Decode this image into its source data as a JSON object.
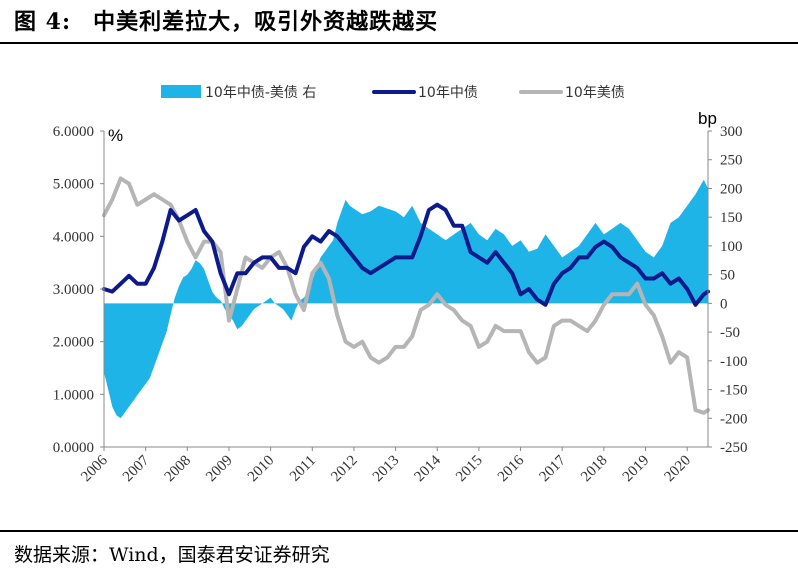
{
  "header": {
    "figure_number": "图 4:",
    "title": "中美利差拉大，吸引外资越跌越买"
  },
  "footer": {
    "source": "数据来源：Wind，国泰君安证券研究"
  },
  "chart_data": {
    "type": "line",
    "left_unit": "%",
    "right_unit": "bp",
    "legend_position": "top-center",
    "grid": false,
    "left_axis": {
      "ylim": [
        0,
        6
      ],
      "ticks": [
        "0.0000",
        "1.0000",
        "2.0000",
        "3.0000",
        "4.0000",
        "5.0000",
        "6.0000"
      ]
    },
    "right_axis": {
      "ylim": [
        -250,
        300
      ],
      "ticks": [
        "-250",
        "-200",
        "-150",
        "-100",
        "-50",
        "0",
        "50",
        "100",
        "150",
        "200",
        "250",
        "300"
      ]
    },
    "x_ticks": [
      "2006",
      "2007",
      "2008",
      "2009",
      "2010",
      "2011",
      "2012",
      "2013",
      "2014",
      "2015",
      "2016",
      "2017",
      "2018",
      "2019",
      "2020"
    ],
    "x_range": [
      2006.0,
      2020.5
    ],
    "series": [
      {
        "name": "10年中债-美债 右",
        "kind": "area",
        "axis": "right",
        "color": "#1EB4E8",
        "x": [
          2006.0,
          2006.1,
          2006.2,
          2006.3,
          2006.4,
          2006.5,
          2006.6,
          2006.7,
          2006.8,
          2006.9,
          2007.0,
          2007.1,
          2007.2,
          2007.3,
          2007.4,
          2007.5,
          2007.6,
          2007.7,
          2007.8,
          2007.9,
          2008.0,
          2008.1,
          2008.2,
          2008.3,
          2008.4,
          2008.5,
          2008.6,
          2008.7,
          2008.8,
          2008.9,
          2009.0,
          2009.1,
          2009.2,
          2009.3,
          2009.4,
          2009.5,
          2009.6,
          2009.7,
          2009.8,
          2009.9,
          2010.0,
          2010.1,
          2010.2,
          2010.3,
          2010.4,
          2010.5,
          2010.6,
          2010.7,
          2010.8,
          2010.9,
          2011.0,
          2011.1,
          2011.2,
          2011.3,
          2011.4,
          2011.5,
          2011.6,
          2011.7,
          2011.8,
          2011.9,
          2012.0,
          2012.2,
          2012.4,
          2012.6,
          2012.8,
          2013.0,
          2013.2,
          2013.4,
          2013.6,
          2013.8,
          2014.0,
          2014.2,
          2014.4,
          2014.6,
          2014.8,
          2015.0,
          2015.2,
          2015.4,
          2015.6,
          2015.8,
          2016.0,
          2016.2,
          2016.4,
          2016.6,
          2016.8,
          2017.0,
          2017.2,
          2017.4,
          2017.6,
          2017.8,
          2018.0,
          2018.2,
          2018.4,
          2018.6,
          2018.8,
          2019.0,
          2019.2,
          2019.4,
          2019.6,
          2019.8,
          2020.0,
          2020.2,
          2020.4,
          2020.5
        ],
        "values": [
          -120,
          -150,
          -180,
          -195,
          -200,
          -190,
          -180,
          -170,
          -160,
          -150,
          -140,
          -130,
          -110,
          -90,
          -70,
          -50,
          -20,
          10,
          30,
          45,
          50,
          60,
          75,
          70,
          60,
          40,
          20,
          10,
          5,
          -10,
          -20,
          -30,
          -45,
          -40,
          -30,
          -20,
          -10,
          -5,
          0,
          5,
          10,
          0,
          -5,
          -10,
          -20,
          -30,
          -10,
          5,
          10,
          20,
          40,
          60,
          80,
          90,
          100,
          110,
          140,
          160,
          180,
          170,
          165,
          155,
          160,
          170,
          165,
          160,
          150,
          170,
          140,
          130,
          120,
          110,
          120,
          130,
          140,
          120,
          110,
          130,
          120,
          100,
          110,
          90,
          95,
          120,
          100,
          80,
          90,
          100,
          120,
          140,
          120,
          130,
          140,
          130,
          110,
          90,
          80,
          100,
          140,
          150,
          170,
          190,
          215,
          200
        ]
      },
      {
        "name": "10年中债",
        "kind": "line",
        "axis": "left",
        "color": "#0C1A8C",
        "x": [
          2006.0,
          2006.2,
          2006.4,
          2006.6,
          2006.8,
          2007.0,
          2007.2,
          2007.4,
          2007.6,
          2007.8,
          2008.0,
          2008.2,
          2008.4,
          2008.6,
          2008.8,
          2009.0,
          2009.2,
          2009.4,
          2009.6,
          2009.8,
          2010.0,
          2010.2,
          2010.4,
          2010.6,
          2010.8,
          2011.0,
          2011.2,
          2011.4,
          2011.6,
          2011.8,
          2012.0,
          2012.2,
          2012.4,
          2012.6,
          2012.8,
          2013.0,
          2013.2,
          2013.4,
          2013.6,
          2013.8,
          2014.0,
          2014.2,
          2014.4,
          2014.6,
          2014.8,
          2015.0,
          2015.2,
          2015.4,
          2015.6,
          2015.8,
          2016.0,
          2016.2,
          2016.4,
          2016.6,
          2016.8,
          2017.0,
          2017.2,
          2017.4,
          2017.6,
          2017.8,
          2018.0,
          2018.2,
          2018.4,
          2018.6,
          2018.8,
          2019.0,
          2019.2,
          2019.4,
          2019.6,
          2019.8,
          2020.0,
          2020.2,
          2020.4,
          2020.5
        ],
        "values": [
          3.0,
          2.95,
          3.1,
          3.25,
          3.1,
          3.1,
          3.4,
          3.9,
          4.5,
          4.3,
          4.4,
          4.5,
          4.1,
          3.9,
          3.3,
          2.9,
          3.3,
          3.3,
          3.5,
          3.6,
          3.6,
          3.4,
          3.4,
          3.3,
          3.8,
          4.0,
          3.9,
          4.1,
          4.0,
          3.8,
          3.6,
          3.4,
          3.3,
          3.4,
          3.5,
          3.6,
          3.6,
          3.6,
          4.0,
          4.5,
          4.6,
          4.5,
          4.2,
          4.2,
          3.7,
          3.6,
          3.5,
          3.7,
          3.5,
          3.3,
          2.9,
          3.0,
          2.8,
          2.7,
          3.1,
          3.3,
          3.4,
          3.6,
          3.6,
          3.8,
          3.9,
          3.8,
          3.6,
          3.5,
          3.4,
          3.2,
          3.2,
          3.3,
          3.1,
          3.2,
          3.0,
          2.7,
          2.9,
          2.95
        ]
      },
      {
        "name": "10年美债",
        "kind": "line",
        "axis": "left",
        "color": "#B5B5B5",
        "x": [
          2006.0,
          2006.2,
          2006.4,
          2006.6,
          2006.8,
          2007.0,
          2007.2,
          2007.4,
          2007.6,
          2007.8,
          2008.0,
          2008.2,
          2008.4,
          2008.6,
          2008.8,
          2009.0,
          2009.2,
          2009.4,
          2009.6,
          2009.8,
          2010.0,
          2010.2,
          2010.4,
          2010.6,
          2010.8,
          2011.0,
          2011.2,
          2011.4,
          2011.6,
          2011.8,
          2012.0,
          2012.2,
          2012.4,
          2012.6,
          2012.8,
          2013.0,
          2013.2,
          2013.4,
          2013.6,
          2013.8,
          2014.0,
          2014.2,
          2014.4,
          2014.6,
          2014.8,
          2015.0,
          2015.2,
          2015.4,
          2015.6,
          2015.8,
          2016.0,
          2016.2,
          2016.4,
          2016.6,
          2016.8,
          2017.0,
          2017.2,
          2017.4,
          2017.6,
          2017.8,
          2018.0,
          2018.2,
          2018.4,
          2018.6,
          2018.8,
          2019.0,
          2019.2,
          2019.4,
          2019.6,
          2019.8,
          2020.0,
          2020.2,
          2020.4,
          2020.5
        ],
        "values": [
          4.4,
          4.7,
          5.1,
          5.0,
          4.6,
          4.7,
          4.8,
          4.7,
          4.6,
          4.3,
          3.9,
          3.6,
          3.9,
          3.9,
          3.7,
          2.4,
          3.0,
          3.6,
          3.5,
          3.4,
          3.6,
          3.7,
          3.4,
          2.9,
          2.6,
          3.3,
          3.5,
          3.2,
          2.5,
          2.0,
          1.9,
          2.0,
          1.7,
          1.6,
          1.7,
          1.9,
          1.9,
          2.1,
          2.6,
          2.7,
          2.9,
          2.7,
          2.6,
          2.4,
          2.3,
          1.9,
          2.0,
          2.3,
          2.2,
          2.2,
          2.2,
          1.8,
          1.6,
          1.7,
          2.3,
          2.4,
          2.4,
          2.3,
          2.2,
          2.4,
          2.7,
          2.9,
          2.9,
          2.9,
          3.1,
          2.7,
          2.5,
          2.1,
          1.6,
          1.8,
          1.7,
          0.7,
          0.65,
          0.7
        ]
      }
    ]
  }
}
